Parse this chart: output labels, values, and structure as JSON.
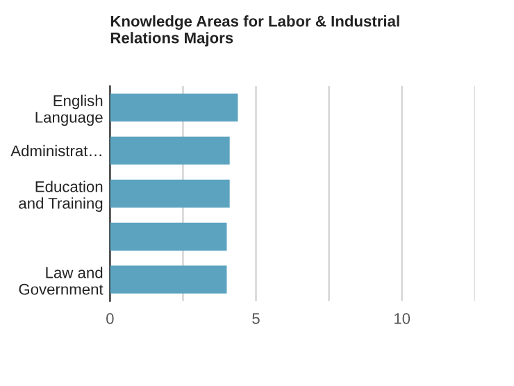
{
  "chart_data": {
    "type": "bar",
    "orientation": "horizontal",
    "title": "Knowledge Areas for Labor & Industrial\nRelations Majors",
    "categories": [
      "English\nLanguage",
      "Administrat…",
      "Education\nand Training",
      null,
      "Law and\nGovernment"
    ],
    "values": [
      4.38,
      4.1,
      4.1,
      4.0,
      4.0
    ],
    "color": "#5ca3c0",
    "xlim": [
      0,
      12.5
    ],
    "xticks": [
      0,
      {
        "value": 2.5,
        "label": null
      },
      5,
      {
        "value": 7.5,
        "label": null
      },
      10,
      {
        "value": 12.5,
        "label": null
      }
    ],
    "grid": "x"
  }
}
